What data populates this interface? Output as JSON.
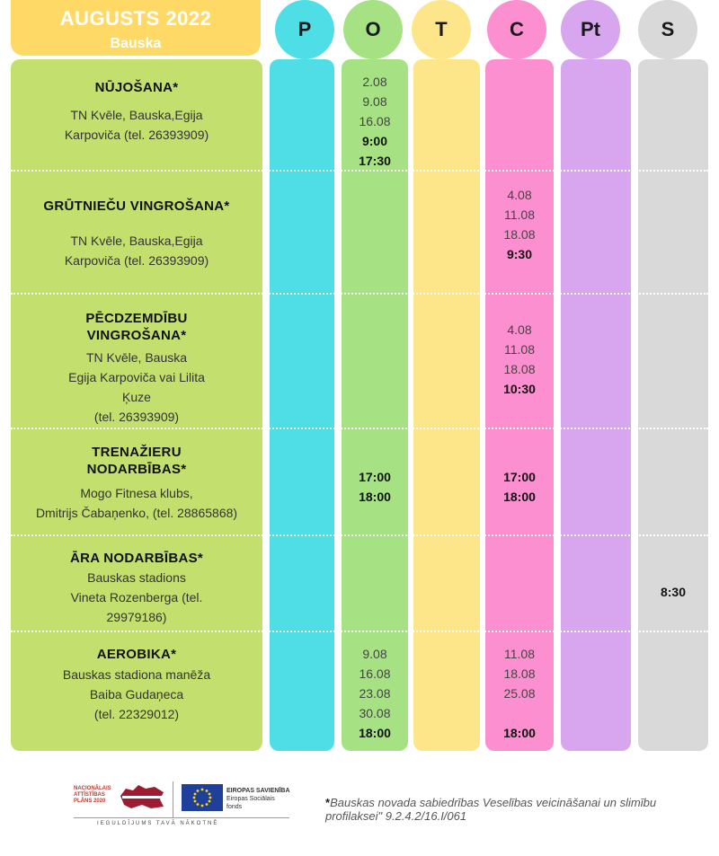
{
  "header": {
    "month": "AUGUSTS 2022",
    "city": "Bauska"
  },
  "days": [
    {
      "label": "P",
      "color": "#4fdde6"
    },
    {
      "label": "O",
      "color": "#a6e184"
    },
    {
      "label": "T",
      "color": "#fde68a"
    },
    {
      "label": "C",
      "color": "#fb8fcf"
    },
    {
      "label": "Pt",
      "color": "#d7a6ee"
    },
    {
      "label": "S",
      "color": "#d9d9d9"
    }
  ],
  "activities": [
    {
      "name": [
        "NŪJOŠANA*"
      ],
      "info": [
        "TN Kvēle, Bauska,Egija",
        "Karpoviča (tel. 26393909)"
      ],
      "otrdiena": [
        "2.08",
        "9.08",
        "16.08"
      ],
      "otrdiena_bold": [
        "9:00",
        "17:30"
      ]
    },
    {
      "name": [
        "GRŪTNIEČU VINGROŠANA*"
      ],
      "info": [
        "TN Kvēle, Bauska,Egija",
        "Karpoviča (tel. 26393909)"
      ],
      "ceturtdiena": [
        "4.08",
        "11.08",
        "18.08"
      ],
      "ceturtdiena_bold": [
        "9:30"
      ]
    },
    {
      "name": [
        "PĒCDZEMDĪBU",
        "VINGROŠANA*"
      ],
      "info": [
        "TN Kvēle, Bauska",
        "Egija Karpoviča vai Lilita",
        "Ķuze",
        "(tel. 26393909)"
      ],
      "ceturtdiena": [
        "4.08",
        "11.08",
        "18.08"
      ],
      "ceturtdiena_bold": [
        "10:30"
      ]
    },
    {
      "name": [
        "TRENAŽIERU",
        "NODARBĪBAS*"
      ],
      "info": [
        "Mogo Fitnesa klubs,",
        "Dmitrijs Čabaņenko, (tel. 28865868)"
      ],
      "otrdiena_bold": [
        "17:00",
        "18:00"
      ],
      "ceturtdiena_bold": [
        "17:00",
        "18:00"
      ]
    },
    {
      "name": [
        "ĀRA NODARBĪBAS*"
      ],
      "info": [
        "Bauskas stadions",
        "Vineta Rozenberga  (tel.",
        "29979186)"
      ],
      "sestdiena_bold": [
        "8:30"
      ]
    },
    {
      "name": [
        "AEROBIKA*"
      ],
      "info": [
        "Bauskas stadiona manēža",
        "Baiba Gudaņeca",
        "(tel. 22329012)"
      ],
      "otrdiena": [
        "9.08",
        "16.08",
        "23.08",
        "30.08"
      ],
      "otrdiena_bold": [
        "18:00"
      ],
      "ceturtdiena": [
        "11.08",
        "18.08",
        "25.08"
      ],
      "ceturtdiena_bold": [
        "18:00"
      ]
    }
  ],
  "footer": {
    "nap_lines": [
      "NACIONĀLAIS",
      "ATTĪSTĪBAS",
      "PLĀNS 2020"
    ],
    "eu_title": "EIROPAS SAVIENĪBA",
    "eu_sub": [
      "Eiropas Sociālais",
      "fonds"
    ],
    "slogan": "IEGULDĪJUMS TAVĀ NĀKOTNĒ",
    "note_star": "*",
    "note": "Bauskas novada sabiedrības Veselības veicināšanai un slimību profilaksei\" 9.2.4.2/16.I/061"
  }
}
